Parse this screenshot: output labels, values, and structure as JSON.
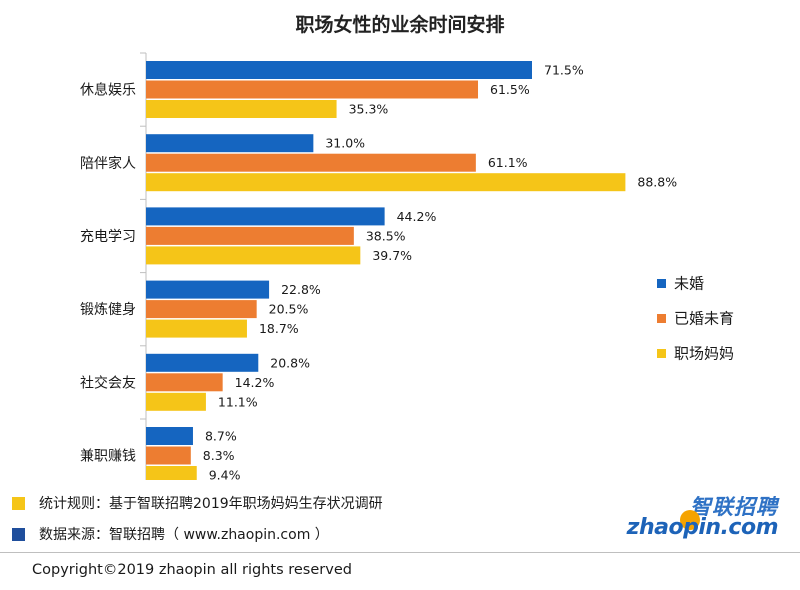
{
  "chart_data": {
    "type": "bar",
    "orientation": "horizontal",
    "title": "职场女性的业余时间安排",
    "categories": [
      "休息娱乐",
      "陪伴家人",
      "充电学习",
      "锻炼健身",
      "社交会友",
      "兼职赚钱"
    ],
    "series": [
      {
        "name": "未婚",
        "color": "#1565c0",
        "values": [
          71.5,
          31.0,
          44.2,
          22.8,
          20.8,
          8.7
        ]
      },
      {
        "name": "已婚未育",
        "color": "#ed7d31",
        "values": [
          61.5,
          61.1,
          38.5,
          20.5,
          14.2,
          8.3
        ]
      },
      {
        "name": "职场妈妈",
        "color": "#f5c518",
        "values": [
          35.3,
          88.8,
          39.7,
          18.7,
          11.1,
          9.4
        ]
      }
    ],
    "value_labels": [
      [
        "71.5%",
        "61.5%",
        "35.3%"
      ],
      [
        "31.0%",
        "61.1%",
        "88.8%"
      ],
      [
        "44.2%",
        "38.5%",
        "39.7%"
      ],
      [
        "22.8%",
        "20.5%",
        "18.7%"
      ],
      [
        "20.8%",
        "14.2%",
        "11.1%"
      ],
      [
        "8.7%",
        "8.3%",
        "9.4%"
      ]
    ],
    "unit": "%",
    "xlim": [
      0,
      100
    ],
    "grid": false,
    "legend_position": "right"
  },
  "footnotes": {
    "rule": {
      "text": "统计规则：基于智联招聘2019年职场妈妈生存状况调研",
      "color": "#f5c518"
    },
    "source": {
      "text": "数据来源：智联招聘（ www.zhaopin.com ）",
      "color": "#1f4e9c"
    }
  },
  "copyright": "Copyright©2019 zhaopin all rights reserved",
  "logo": {
    "cn": "智联招聘",
    "en": "zhaopin.com"
  }
}
